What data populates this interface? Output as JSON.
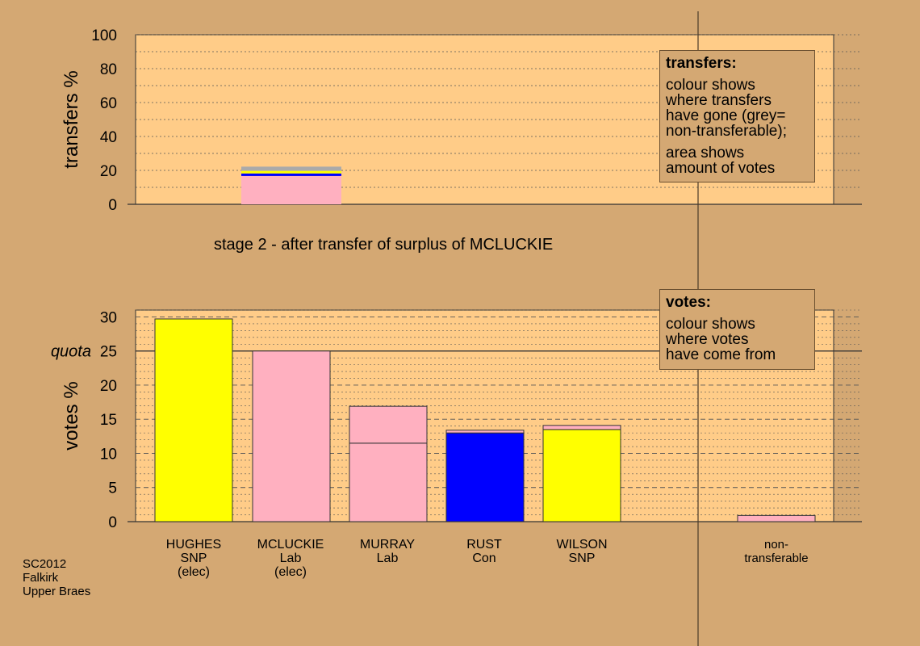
{
  "colors": {
    "background": "#d4a873",
    "plot_bg": "#ffcc88",
    "SNP": "#ffff00",
    "Lab": "#ffb0c0",
    "Con": "#0000ff",
    "non_transferable": "#aaaaaa"
  },
  "stage_label": "stage 2 - after transfer of surplus of MCLUCKIE",
  "source": {
    "line1": "SC2012",
    "line2": "Falkirk",
    "line3": "Upper Braes"
  },
  "legend_transfers": {
    "title": "transfers:",
    "line1": "colour shows",
    "line2": "where transfers",
    "line3": "have gone (grey=",
    "line4": "non-transferable);",
    "line5": "area shows",
    "line6": "amount of votes"
  },
  "legend_votes": {
    "title": "votes:",
    "line1": "colour shows",
    "line2": "where votes",
    "line3": "have come from"
  },
  "candidates": [
    {
      "name": "HUGHES",
      "party": "SNP",
      "status": "(elec)"
    },
    {
      "name": "MCLUCKIE",
      "party": "Lab",
      "status": "(elec)"
    },
    {
      "name": "MURRAY",
      "party": "Lab",
      "status": ""
    },
    {
      "name": "RUST",
      "party": "Con",
      "status": ""
    },
    {
      "name": "WILSON",
      "party": "SNP",
      "status": ""
    },
    {
      "name": "non-",
      "party": "transferable",
      "status": ""
    }
  ],
  "chart_data": [
    {
      "type": "bar",
      "ylabel": "transfers %",
      "ylim": [
        0,
        100
      ],
      "yticks": [
        0,
        20,
        40,
        60,
        80,
        100
      ],
      "grid": true,
      "stacked_segments": [
        {
          "party": "Lab",
          "value": 16.7
        },
        {
          "party": "Con",
          "value": 1.5
        },
        {
          "party": "SNP",
          "value": 1.5
        },
        {
          "party": "non_transferable",
          "value": 2.5
        }
      ]
    },
    {
      "type": "bar",
      "ylabel": "votes %",
      "ylim": [
        0,
        31
      ],
      "yticks": [
        0,
        5,
        10,
        15,
        20,
        25,
        30
      ],
      "quota": 25,
      "quota_label": "quota",
      "grid": true,
      "bars": [
        {
          "candidate": "HUGHES",
          "segments": [
            {
              "party": "SNP",
              "value": 29.7
            }
          ]
        },
        {
          "candidate": "MCLUCKIE",
          "segments": [
            {
              "party": "Lab",
              "value": 25
            }
          ]
        },
        {
          "candidate": "MURRAY",
          "segments": [
            {
              "party": "Lab",
              "value": 11.5
            },
            {
              "party": "Lab",
              "value": 5.4
            }
          ]
        },
        {
          "candidate": "RUST",
          "segments": [
            {
              "party": "Con",
              "value": 13.0
            },
            {
              "party": "Lab",
              "value": 0.4
            }
          ]
        },
        {
          "candidate": "WILSON",
          "segments": [
            {
              "party": "SNP",
              "value": 13.5
            },
            {
              "party": "Lab",
              "value": 0.6
            }
          ]
        },
        {
          "candidate": "non-transferable",
          "segments": [
            {
              "party": "Lab",
              "value": 0.9
            }
          ]
        }
      ]
    }
  ]
}
